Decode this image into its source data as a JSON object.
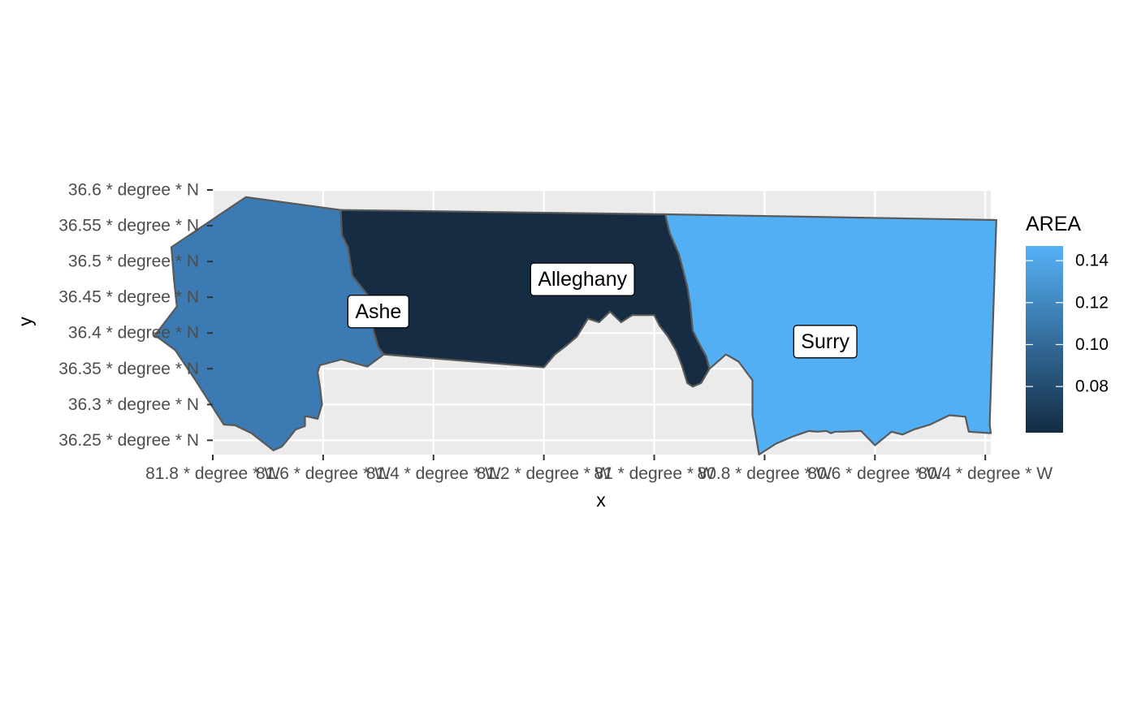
{
  "chart_data": {
    "type": "choropleth",
    "xlabel": "x",
    "ylabel": "y",
    "xlim": [
      -81.8,
      -80.39
    ],
    "ylim": [
      36.23,
      36.6
    ],
    "x_ticks": [
      {
        "value": -81.8,
        "label": "81.8 * degree * W"
      },
      {
        "value": -81.6,
        "label": "81.6 * degree * W"
      },
      {
        "value": -81.4,
        "label": "81.4 * degree * W"
      },
      {
        "value": -81.2,
        "label": "81.2 * degree * W"
      },
      {
        "value": -81.0,
        "label": "81 * degree * W"
      },
      {
        "value": -80.8,
        "label": "80.8 * degree * W"
      },
      {
        "value": -80.6,
        "label": "80.6 * degree * W"
      },
      {
        "value": -80.4,
        "label": "80.4 * degree * W"
      }
    ],
    "y_ticks": [
      {
        "value": 36.6,
        "label": "36.6 * degree * N"
      },
      {
        "value": 36.55,
        "label": "36.55 * degree * N"
      },
      {
        "value": 36.5,
        "label": "36.5 * degree * N"
      },
      {
        "value": 36.45,
        "label": "36.45 * degree * N"
      },
      {
        "value": 36.4,
        "label": "36.4 * degree * N"
      },
      {
        "value": 36.35,
        "label": "36.35 * degree * N"
      },
      {
        "value": 36.3,
        "label": "36.3 * degree * N"
      },
      {
        "value": 36.25,
        "label": "36.25 * degree * N"
      }
    ],
    "grid": true,
    "legend": {
      "title": "AREA",
      "placement": "right",
      "min": 0.058,
      "max": 0.147,
      "breaks": [
        {
          "value": 0.14,
          "label": "0.14"
        },
        {
          "value": 0.12,
          "label": "0.12"
        },
        {
          "value": 0.1,
          "label": "0.10"
        },
        {
          "value": 0.08,
          "label": "0.08"
        }
      ],
      "color_low": "#132B43",
      "color_high": "#56B1F7"
    },
    "colors": {
      "panel": "#EBEBEB",
      "grid_major": "#FFFFFF",
      "border": "#595959",
      "tick": "#333333"
    },
    "regions": [
      {
        "name": "Ashe",
        "area": 0.114,
        "color": "#3B7AB2",
        "label_at": [
          -81.5,
          36.43
        ],
        "boundary": [
          [
            -81.74,
            36.59
          ],
          [
            -81.568,
            36.572
          ],
          [
            -81.566,
            36.537
          ],
          [
            -81.555,
            36.52
          ],
          [
            -81.547,
            36.48
          ],
          [
            -81.519,
            36.453
          ],
          [
            -81.51,
            36.44
          ],
          [
            -81.509,
            36.404
          ],
          [
            -81.5,
            36.38
          ],
          [
            -81.49,
            36.37
          ],
          [
            -81.52,
            36.353
          ],
          [
            -81.567,
            36.363
          ],
          [
            -81.606,
            36.355
          ],
          [
            -81.61,
            36.345
          ],
          [
            -81.606,
            36.326
          ],
          [
            -81.602,
            36.3
          ],
          [
            -81.61,
            36.28
          ],
          [
            -81.633,
            36.284
          ],
          [
            -81.633,
            36.27
          ],
          [
            -81.65,
            36.265
          ],
          [
            -81.663,
            36.252
          ],
          [
            -81.675,
            36.241
          ],
          [
            -81.69,
            36.236
          ],
          [
            -81.73,
            36.26
          ],
          [
            -81.76,
            36.271
          ],
          [
            -81.78,
            36.272
          ],
          [
            -81.795,
            36.29
          ],
          [
            -81.834,
            36.337
          ],
          [
            -81.868,
            36.376
          ],
          [
            -81.905,
            36.397
          ],
          [
            -81.865,
            36.437
          ],
          [
            -81.87,
            36.473
          ],
          [
            -81.875,
            36.52
          ]
        ]
      },
      {
        "name": "Alleghany",
        "area": 0.061,
        "color": "#152C42",
        "label_at": [
          -81.13,
          36.475
        ],
        "boundary": [
          [
            -81.568,
            36.572
          ],
          [
            -80.98,
            36.566
          ],
          [
            -80.972,
            36.54
          ],
          [
            -80.955,
            36.51
          ],
          [
            -80.94,
            36.465
          ],
          [
            -80.935,
            36.441
          ],
          [
            -80.93,
            36.403
          ],
          [
            -80.915,
            36.38
          ],
          [
            -80.906,
            36.368
          ],
          [
            -80.9,
            36.35
          ],
          [
            -80.915,
            36.33
          ],
          [
            -80.93,
            36.325
          ],
          [
            -80.94,
            36.33
          ],
          [
            -80.95,
            36.355
          ],
          [
            -80.96,
            36.375
          ],
          [
            -80.975,
            36.395
          ],
          [
            -80.99,
            36.41
          ],
          [
            -81.0,
            36.425
          ],
          [
            -81.04,
            36.425
          ],
          [
            -81.06,
            36.415
          ],
          [
            -81.08,
            36.43
          ],
          [
            -81.1,
            36.415
          ],
          [
            -81.12,
            36.42
          ],
          [
            -81.14,
            36.395
          ],
          [
            -81.16,
            36.382
          ],
          [
            -81.18,
            36.37
          ],
          [
            -81.2,
            36.352
          ],
          [
            -81.49,
            36.37
          ],
          [
            -81.5,
            36.38
          ],
          [
            -81.509,
            36.404
          ],
          [
            -81.51,
            36.44
          ],
          [
            -81.519,
            36.453
          ],
          [
            -81.547,
            36.48
          ],
          [
            -81.555,
            36.52
          ],
          [
            -81.566,
            36.537
          ]
        ]
      },
      {
        "name": "Surry",
        "area": 0.143,
        "color": "#53AFF4",
        "label_at": [
          -80.69,
          36.388
        ],
        "boundary": [
          [
            -80.98,
            36.566
          ],
          [
            -80.38,
            36.558
          ],
          [
            -80.392,
            36.272
          ],
          [
            -80.39,
            36.26
          ],
          [
            -80.43,
            36.262
          ],
          [
            -80.436,
            36.283
          ],
          [
            -80.465,
            36.285
          ],
          [
            -80.5,
            36.272
          ],
          [
            -80.53,
            36.265
          ],
          [
            -80.55,
            36.258
          ],
          [
            -80.57,
            36.262
          ],
          [
            -80.6,
            36.243
          ],
          [
            -80.625,
            36.263
          ],
          [
            -80.66,
            36.262
          ],
          [
            -80.672,
            36.262
          ],
          [
            -80.68,
            36.26
          ],
          [
            -80.688,
            36.263
          ],
          [
            -80.705,
            36.262
          ],
          [
            -80.72,
            36.263
          ],
          [
            -80.75,
            36.255
          ],
          [
            -80.78,
            36.245
          ],
          [
            -80.81,
            36.23
          ],
          [
            -80.822,
            36.285
          ],
          [
            -80.822,
            36.334
          ],
          [
            -80.847,
            36.36
          ],
          [
            -80.87,
            36.37
          ],
          [
            -80.9,
            36.35
          ],
          [
            -80.906,
            36.368
          ],
          [
            -80.915,
            36.38
          ],
          [
            -80.93,
            36.403
          ],
          [
            -80.935,
            36.441
          ],
          [
            -80.94,
            36.465
          ],
          [
            -80.955,
            36.51
          ],
          [
            -80.972,
            36.54
          ]
        ]
      }
    ]
  }
}
